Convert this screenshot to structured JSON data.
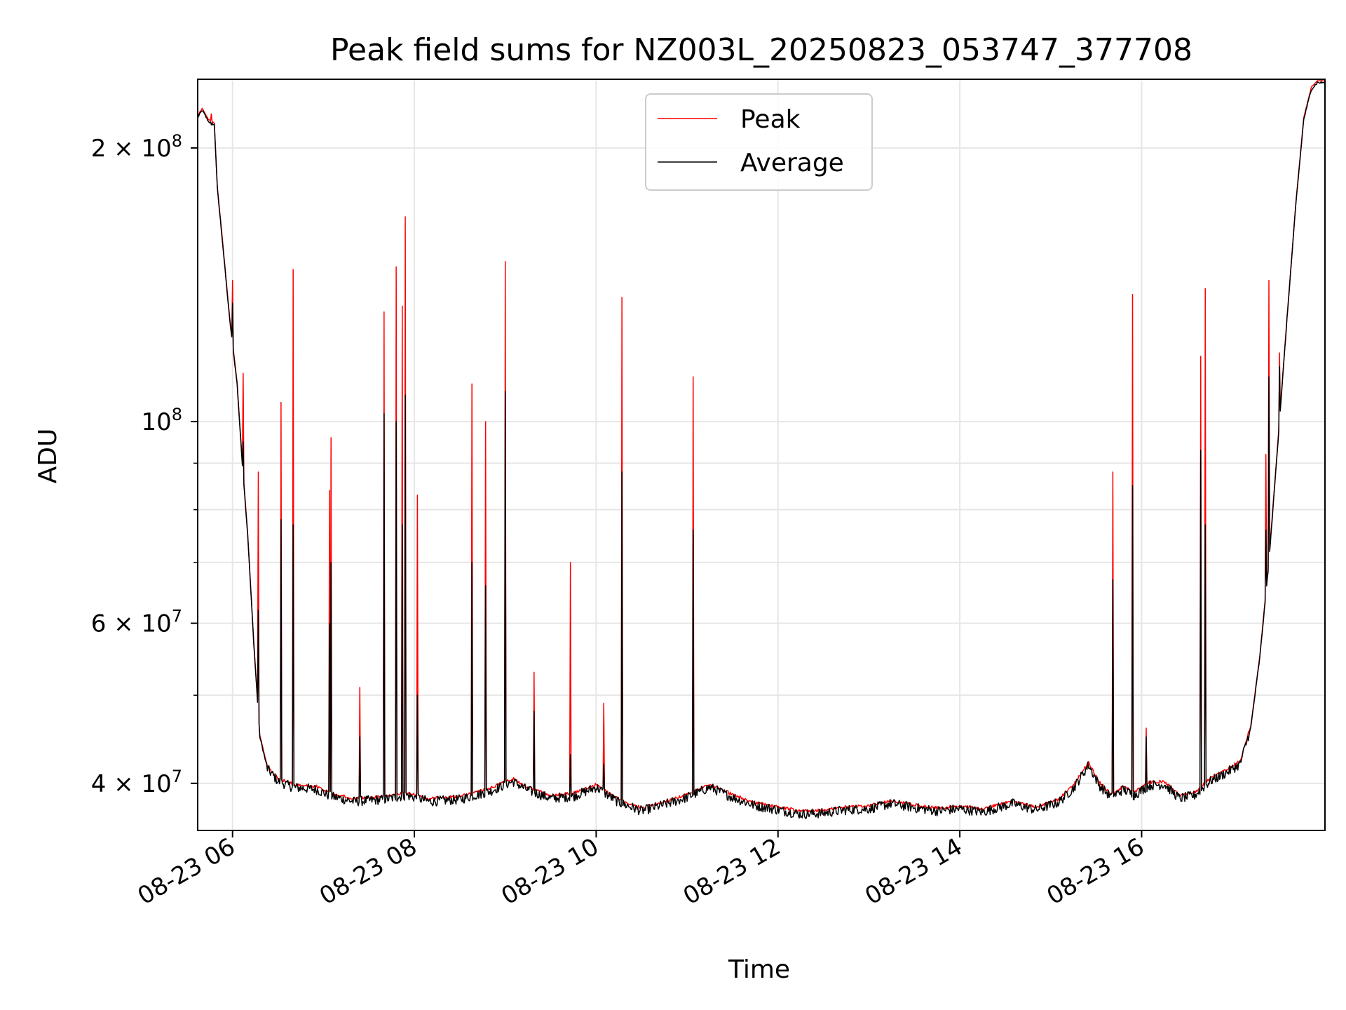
{
  "chart_data": {
    "type": "line",
    "title": "Peak field sums for NZ003L_20250823_053747_377708",
    "xlabel": "Time",
    "ylabel": "ADU",
    "y_scale": "log",
    "xlim": [
      "2025-08-23 05:37",
      "2025-08-23 18:01"
    ],
    "ylim": [
      35500000,
      238000000
    ],
    "x_ticks": [
      {
        "t": "2025-08-23 06:00",
        "label": "08-23 06"
      },
      {
        "t": "2025-08-23 08:00",
        "label": "08-23 08"
      },
      {
        "t": "2025-08-23 10:00",
        "label": "08-23 10"
      },
      {
        "t": "2025-08-23 12:00",
        "label": "08-23 12"
      },
      {
        "t": "2025-08-23 14:00",
        "label": "08-23 14"
      },
      {
        "t": "2025-08-23 16:00",
        "label": "08-23 16"
      }
    ],
    "y_ticks": [
      {
        "value": 40000000,
        "mantissa": "4",
        "exp": "7"
      },
      {
        "value": 60000000,
        "mantissa": "6",
        "exp": "7"
      },
      {
        "value": 100000000,
        "mantissa": "",
        "exp": "8"
      },
      {
        "value": 200000000,
        "mantissa": "2",
        "exp": "8"
      }
    ],
    "y_minor_ticks": [
      50000000,
      70000000,
      80000000,
      90000000
    ],
    "grid": true,
    "legend": "upper center",
    "series": [
      {
        "name": "Peak",
        "color": "#ff0000"
      },
      {
        "name": "Average",
        "color": "#000000"
      }
    ],
    "baseline": [
      [
        "05:37",
        216000000
      ],
      [
        "05:40",
        220000000
      ],
      [
        "05:44",
        214000000
      ],
      [
        "05:48",
        212000000
      ],
      [
        "05:50",
        180000000
      ],
      [
        "05:53",
        160000000
      ],
      [
        "05:58",
        130000000
      ],
      [
        "06:03",
        110000000
      ],
      [
        "06:06",
        92000000
      ],
      [
        "06:10",
        75000000
      ],
      [
        "06:14",
        57000000
      ],
      [
        "06:18",
        45000000
      ],
      [
        "06:23",
        41500000
      ],
      [
        "06:30",
        40200000
      ],
      [
        "06:40",
        39600000
      ],
      [
        "06:55",
        39400000
      ],
      [
        "07:05",
        38700000
      ],
      [
        "07:20",
        38200000
      ],
      [
        "07:40",
        38400000
      ],
      [
        "07:55",
        38800000
      ],
      [
        "08:10",
        38200000
      ],
      [
        "08:30",
        38400000
      ],
      [
        "08:50",
        39200000
      ],
      [
        "09:05",
        40200000
      ],
      [
        "09:15",
        39300000
      ],
      [
        "09:30",
        38500000
      ],
      [
        "09:45",
        38700000
      ],
      [
        "10:00",
        39600000
      ],
      [
        "10:15",
        38100000
      ],
      [
        "10:30",
        37300000
      ],
      [
        "10:45",
        37900000
      ],
      [
        "11:00",
        38600000
      ],
      [
        "11:15",
        39600000
      ],
      [
        "11:30",
        38600000
      ],
      [
        "11:45",
        37800000
      ],
      [
        "12:00",
        37400000
      ],
      [
        "12:15",
        37000000
      ],
      [
        "12:30",
        37100000
      ],
      [
        "12:45",
        37400000
      ],
      [
        "13:00",
        37500000
      ],
      [
        "13:15",
        38000000
      ],
      [
        "13:30",
        37600000
      ],
      [
        "13:45",
        37300000
      ],
      [
        "14:00",
        37500000
      ],
      [
        "14:15",
        37200000
      ],
      [
        "14:35",
        38000000
      ],
      [
        "14:50",
        37400000
      ],
      [
        "15:05",
        38100000
      ],
      [
        "15:15",
        39500000
      ],
      [
        "15:25",
        41900000
      ],
      [
        "15:32",
        39800000
      ],
      [
        "15:40",
        38600000
      ],
      [
        "15:48",
        39400000
      ],
      [
        "15:55",
        38800000
      ],
      [
        "16:05",
        39800000
      ],
      [
        "16:15",
        39900000
      ],
      [
        "16:25",
        38500000
      ],
      [
        "16:35",
        38800000
      ],
      [
        "16:45",
        40200000
      ],
      [
        "16:55",
        41000000
      ],
      [
        "17:05",
        42000000
      ],
      [
        "17:12",
        46000000
      ],
      [
        "17:18",
        55000000
      ],
      [
        "17:24",
        70000000
      ],
      [
        "17:30",
        95000000
      ],
      [
        "17:36",
        130000000
      ],
      [
        "17:42",
        175000000
      ],
      [
        "17:47",
        215000000
      ],
      [
        "17:52",
        232000000
      ],
      [
        "17:56",
        236000000
      ],
      [
        "18:01",
        236000000
      ]
    ],
    "spikes": [
      {
        "t": "05:46",
        "peak": 218000000,
        "avg": 212000000
      },
      {
        "t": "06:00",
        "peak": 143000000,
        "avg": 135000000
      },
      {
        "t": "06:07",
        "peak": 113000000,
        "avg": 95000000
      },
      {
        "t": "06:17",
        "peak": 88000000,
        "avg": 62000000
      },
      {
        "t": "06:32",
        "peak": 105000000,
        "avg": 78000000
      },
      {
        "t": "06:40",
        "peak": 147000000,
        "avg": 77000000
      },
      {
        "t": "07:04",
        "peak": 84000000,
        "avg": 60000000
      },
      {
        "t": "07:05",
        "peak": 96000000,
        "avg": 70000000
      },
      {
        "t": "07:24",
        "peak": 51000000,
        "avg": 45000000
      },
      {
        "t": "07:40",
        "peak": 132000000,
        "avg": 102000000
      },
      {
        "t": "07:48",
        "peak": 148000000,
        "avg": 100000000
      },
      {
        "t": "07:52",
        "peak": 134000000,
        "avg": 77000000
      },
      {
        "t": "07:54",
        "peak": 168000000,
        "avg": 107000000
      },
      {
        "t": "08:02",
        "peak": 83000000,
        "avg": 50000000
      },
      {
        "t": "08:38",
        "peak": 110000000,
        "avg": 70000000
      },
      {
        "t": "08:47",
        "peak": 100000000,
        "avg": 66000000
      },
      {
        "t": "09:00",
        "peak": 150000000,
        "avg": 108000000
      },
      {
        "t": "09:19",
        "peak": 53000000,
        "avg": 48000000
      },
      {
        "t": "09:43",
        "peak": 70000000,
        "avg": 43000000
      },
      {
        "t": "10:05",
        "peak": 49000000,
        "avg": 42000000
      },
      {
        "t": "10:17",
        "peak": 137000000,
        "avg": 88000000
      },
      {
        "t": "11:04",
        "peak": 112000000,
        "avg": 76000000
      },
      {
        "t": "15:41",
        "peak": 88000000,
        "avg": 67000000
      },
      {
        "t": "15:54",
        "peak": 138000000,
        "avg": 85000000
      },
      {
        "t": "16:03",
        "peak": 46000000,
        "avg": 45000000
      },
      {
        "t": "16:39",
        "peak": 118000000,
        "avg": 93000000
      },
      {
        "t": "16:42",
        "peak": 140000000,
        "avg": 77000000
      },
      {
        "t": "17:22",
        "peak": 92000000,
        "avg": 76000000
      },
      {
        "t": "17:24",
        "peak": 143000000,
        "avg": 112000000
      },
      {
        "t": "17:31",
        "peak": 119000000,
        "avg": 115000000
      }
    ]
  }
}
